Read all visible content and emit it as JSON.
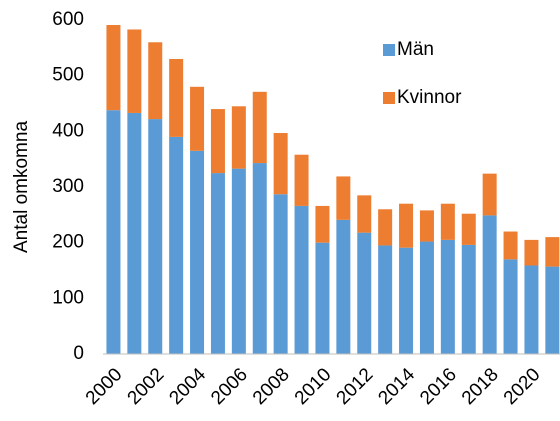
{
  "chart_data": {
    "type": "stacked_bar",
    "ylabel": "Antal omkomna",
    "categories": [
      "2000",
      null,
      "2002",
      null,
      "2004",
      null,
      "2006",
      null,
      "2008",
      null,
      "2010",
      null,
      "2012",
      null,
      "2014",
      null,
      "2016",
      null,
      "2018",
      null,
      "2020",
      null
    ],
    "series": [
      {
        "name": "Män",
        "color": "#5b9bd5",
        "values": [
          438,
          433,
          422,
          390,
          365,
          325,
          333,
          343,
          287,
          266,
          200,
          241,
          218,
          195,
          191,
          202,
          205,
          196,
          249,
          170,
          159,
          157
        ]
      },
      {
        "name": "Kvinnor",
        "color": "#ed7d31",
        "values": [
          153,
          150,
          138,
          140,
          115,
          115,
          112,
          128,
          110,
          92,
          66,
          78,
          67,
          65,
          79,
          56,
          65,
          56,
          75,
          50,
          46,
          53
        ]
      }
    ],
    "ylim": [
      0,
      600
    ],
    "yticks": [
      0,
      100,
      200,
      300,
      400,
      500,
      600
    ],
    "grid": false,
    "legend": "upper right"
  }
}
